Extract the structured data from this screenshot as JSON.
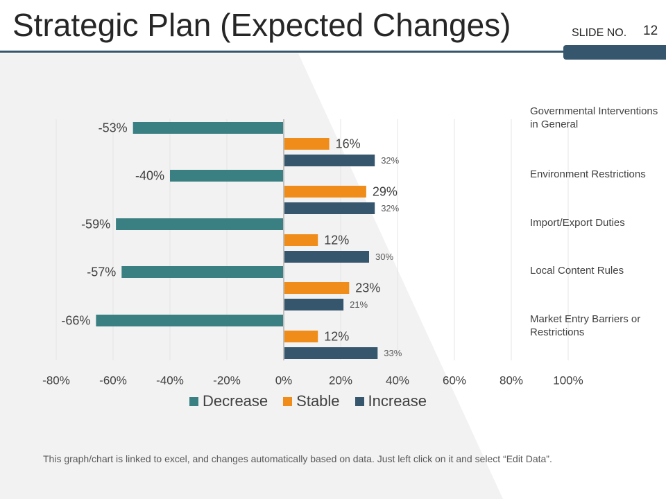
{
  "slide": {
    "title": "Strategic Plan (Expected Changes)",
    "slide_no_label": "SLIDE NO.",
    "slide_no": "12",
    "footer": "This graph/chart is linked to excel, and changes automatically based on data. Just left click on it and select “Edit Data”."
  },
  "colors": {
    "decrease": "#3a7f81",
    "stable": "#ef8c1a",
    "increase": "#35566c",
    "background_panel": "#f2f2f2",
    "title_rule": "#35566c"
  },
  "chart_data": {
    "type": "bar",
    "orientation": "horizontal",
    "categories": [
      "Governmental Interventions in General",
      "Environment Restrictions",
      "Import/Export Duties",
      "Local Content Rules",
      "Market Entry Barriers or Restrictions"
    ],
    "series": [
      {
        "name": "Decrease",
        "values": [
          -53,
          -40,
          -59,
          -57,
          -66
        ],
        "labels": [
          "-53%",
          "-40%",
          "-59%",
          "-57%",
          "-66%"
        ]
      },
      {
        "name": "Stable",
        "values": [
          16,
          29,
          12,
          23,
          12
        ],
        "labels": [
          "16%",
          "29%",
          "12%",
          "23%",
          "12%"
        ]
      },
      {
        "name": "Increase",
        "values": [
          32,
          32,
          30,
          21,
          33
        ],
        "labels": [
          "32%",
          "32%",
          "30%",
          "21%",
          "33%"
        ]
      }
    ],
    "xlim": [
      -80,
      100
    ],
    "xticks": [
      -80,
      -60,
      -40,
      -20,
      0,
      20,
      40,
      60,
      80,
      100
    ],
    "xtick_labels": [
      "-80%",
      "-60%",
      "-40%",
      "-20%",
      "0%",
      "20%",
      "40%",
      "60%",
      "80%",
      "100%"
    ],
    "legend": [
      "Decrease",
      "Stable",
      "Increase"
    ],
    "legend_position": "bottom",
    "gridlines": "vertical"
  }
}
